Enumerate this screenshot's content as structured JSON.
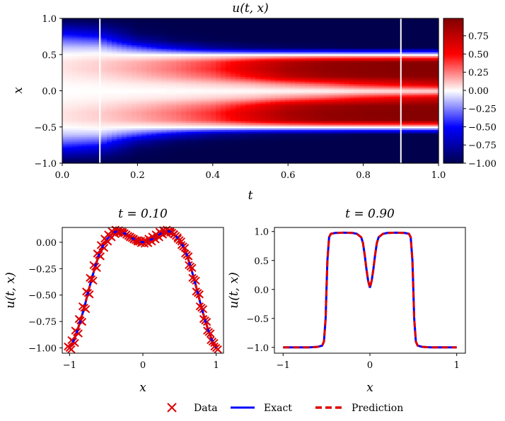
{
  "chart_data": [
    {
      "type": "heatmap",
      "title": "u(t, x)",
      "xlabel": "t",
      "ylabel": "x",
      "xlim": [
        0,
        1
      ],
      "ylim": [
        -1,
        1
      ],
      "xticks": [
        "0.0",
        "0.2",
        "0.4",
        "0.6",
        "0.8",
        "1.0"
      ],
      "yticks": [
        "−1.0",
        "−0.5",
        "0.0",
        "0.5",
        "1.0"
      ],
      "colormap": "seismic",
      "colorbar": {
        "range": [
          -1,
          0.99
        ],
        "ticks": [
          "0.75",
          "0.50",
          "0.25",
          "0.00",
          "−0.25",
          "−0.50",
          "−0.75",
          "−1.00"
        ]
      },
      "slice_lines_t": [
        0.1,
        0.9
      ],
      "slice_line_color": "#ffffff",
      "grid_t": [
        0,
        0.1,
        0.2,
        0.3,
        0.4,
        0.5,
        0.6,
        0.7,
        0.8,
        0.9,
        1.0
      ],
      "grid_x": [
        -1,
        -0.9,
        -0.8,
        -0.7,
        -0.6,
        -0.5,
        -0.4,
        -0.3,
        -0.2,
        -0.1,
        0,
        0.1,
        0.2,
        0.3,
        0.4,
        0.5,
        0.6,
        0.7,
        0.8,
        0.9,
        1
      ],
      "values": [
        [
          -1,
          -0.77,
          -0.52,
          -0.29,
          -0.11,
          0,
          0.049,
          0.053,
          0.032,
          0.0095,
          0,
          0.0095,
          0.032,
          0.053,
          0.049,
          0,
          -0.11,
          -0.29,
          -0.52,
          -0.77,
          -1
        ],
        [
          -1,
          -0.85,
          -0.62,
          -0.35,
          -0.12,
          0.02,
          0.09,
          0.1,
          0.06,
          0.02,
          0,
          0.02,
          0.06,
          0.1,
          0.09,
          0.02,
          -0.12,
          -0.35,
          -0.62,
          -0.85,
          -1
        ],
        [
          -1,
          -0.98,
          -0.93,
          -0.75,
          -0.35,
          0,
          0.16,
          0.18,
          0.12,
          0.04,
          0,
          0.04,
          0.12,
          0.18,
          0.16,
          0,
          -0.35,
          -0.75,
          -0.93,
          -0.98,
          -1
        ],
        [
          -1,
          -1,
          -0.99,
          -0.93,
          -0.6,
          0,
          0.25,
          0.28,
          0.2,
          0.06,
          0,
          0.06,
          0.2,
          0.28,
          0.25,
          0,
          -0.6,
          -0.93,
          -0.99,
          -1,
          -1
        ],
        [
          -1,
          -1,
          -1,
          -0.98,
          -0.8,
          0,
          0.38,
          0.42,
          0.3,
          0.1,
          0,
          0.1,
          0.3,
          0.42,
          0.38,
          0,
          -0.8,
          -0.98,
          -1,
          -1,
          -1
        ],
        [
          -1,
          -1,
          -1,
          -1,
          -0.9,
          0,
          0.6,
          0.65,
          0.5,
          0.15,
          0,
          0.15,
          0.5,
          0.65,
          0.6,
          0,
          -0.9,
          -1,
          -1,
          -1,
          -1
        ],
        [
          -1,
          -1,
          -1,
          -1,
          -0.95,
          0,
          0.8,
          0.85,
          0.75,
          0.25,
          0,
          0.25,
          0.75,
          0.85,
          0.8,
          0,
          -0.95,
          -1,
          -1,
          -1,
          -1
        ],
        [
          -1,
          -1,
          -1,
          -1,
          -0.97,
          0,
          0.92,
          0.93,
          0.88,
          0.35,
          0,
          0.35,
          0.88,
          0.93,
          0.92,
          0,
          -0.97,
          -1,
          -1,
          -1,
          -1
        ],
        [
          -1,
          -1,
          -1,
          -1,
          -1,
          0,
          0.95,
          0.96,
          0.93,
          0.5,
          0.02,
          0.5,
          0.93,
          0.96,
          0.95,
          0,
          -1,
          -1,
          -1,
          -1,
          -1
        ],
        [
          -1,
          -1,
          -1,
          -1,
          -1,
          0,
          0.97,
          0.98,
          0.95,
          0.6,
          0.03,
          0.6,
          0.95,
          0.98,
          0.97,
          0,
          -1,
          -1,
          -1,
          -1,
          -1
        ],
        [
          -1,
          -1,
          -1,
          -1,
          -1,
          0,
          0.97,
          0.98,
          0.96,
          0.7,
          0.04,
          0.7,
          0.96,
          0.98,
          0.97,
          0,
          -1,
          -1,
          -1,
          -1,
          -1
        ]
      ]
    },
    {
      "type": "line",
      "title": "t = 0.10",
      "xlabel": "x",
      "ylabel": "u(t, x)",
      "xlim": [
        -1.1,
        1.1
      ],
      "ylim": [
        -1.05,
        0.14
      ],
      "xticks": [
        "−1",
        "0",
        "1"
      ],
      "yticks": [
        "0.00",
        "−0.25",
        "−0.50",
        "−0.75",
        "−1.00"
      ],
      "x": [
        -1,
        -0.95,
        -0.9,
        -0.85,
        -0.8,
        -0.75,
        -0.7,
        -0.65,
        -0.6,
        -0.55,
        -0.5,
        -0.45,
        -0.4,
        -0.35,
        -0.3,
        -0.25,
        -0.2,
        -0.15,
        -0.1,
        -0.05,
        0,
        0.05,
        0.1,
        0.15,
        0.2,
        0.25,
        0.3,
        0.35,
        0.4,
        0.45,
        0.5,
        0.55,
        0.6,
        0.65,
        0.7,
        0.75,
        0.8,
        0.85,
        0.9,
        0.95,
        1
      ],
      "series": [
        {
          "name": "Data",
          "kind": "scatter-x",
          "values": [
            -1,
            -0.94,
            -0.85,
            -0.74,
            -0.62,
            -0.48,
            -0.35,
            -0.23,
            -0.12,
            -0.04,
            0.02,
            0.06,
            0.09,
            0.105,
            0.1,
            0.085,
            0.06,
            0.04,
            0.02,
            0.005,
            0,
            0.005,
            0.02,
            0.04,
            0.06,
            0.085,
            0.1,
            0.105,
            0.09,
            0.06,
            0.02,
            -0.04,
            -0.12,
            -0.23,
            -0.35,
            -0.48,
            -0.62,
            -0.74,
            -0.85,
            -0.94,
            -1
          ]
        },
        {
          "name": "Exact",
          "kind": "line",
          "values": [
            -1,
            -0.94,
            -0.85,
            -0.74,
            -0.62,
            -0.48,
            -0.35,
            -0.23,
            -0.12,
            -0.04,
            0.02,
            0.06,
            0.09,
            0.105,
            0.1,
            0.085,
            0.06,
            0.04,
            0.02,
            0.005,
            0,
            0.005,
            0.02,
            0.04,
            0.06,
            0.085,
            0.1,
            0.105,
            0.09,
            0.06,
            0.02,
            -0.04,
            -0.12,
            -0.23,
            -0.35,
            -0.48,
            -0.62,
            -0.74,
            -0.85,
            -0.94,
            -1
          ]
        },
        {
          "name": "Prediction",
          "kind": "dashed",
          "values": [
            -1,
            -0.94,
            -0.85,
            -0.74,
            -0.62,
            -0.48,
            -0.35,
            -0.23,
            -0.12,
            -0.04,
            0.02,
            0.06,
            0.09,
            0.105,
            0.1,
            0.085,
            0.06,
            0.04,
            0.02,
            0.005,
            0,
            0.005,
            0.02,
            0.04,
            0.06,
            0.085,
            0.1,
            0.105,
            0.09,
            0.06,
            0.02,
            -0.04,
            -0.12,
            -0.23,
            -0.35,
            -0.48,
            -0.62,
            -0.74,
            -0.85,
            -0.94,
            -1
          ]
        }
      ]
    },
    {
      "type": "line",
      "title": "t = 0.90",
      "xlabel": "x",
      "ylabel": "u(t, x)",
      "xlim": [
        -1.1,
        1.1
      ],
      "ylim": [
        -1.1,
        1.07
      ],
      "xticks": [
        "−1",
        "0",
        "1"
      ],
      "yticks": [
        "1.0",
        "0.5",
        "0.0",
        "−0.5",
        "−1.0"
      ],
      "x": [
        -1,
        -0.7,
        -0.6,
        -0.55,
        -0.53,
        -0.51,
        -0.5,
        -0.49,
        -0.47,
        -0.45,
        -0.4,
        -0.3,
        -0.2,
        -0.15,
        -0.1,
        -0.08,
        -0.06,
        -0.04,
        -0.02,
        0,
        0.02,
        0.04,
        0.06,
        0.08,
        0.1,
        0.15,
        0.2,
        0.3,
        0.4,
        0.45,
        0.47,
        0.49,
        0.5,
        0.51,
        0.53,
        0.55,
        0.6,
        0.7,
        1
      ],
      "series": [
        {
          "name": "Exact",
          "kind": "line",
          "values": [
            -1,
            -1,
            -0.99,
            -0.97,
            -0.9,
            -0.5,
            0,
            0.5,
            0.9,
            0.96,
            0.975,
            0.98,
            0.975,
            0.96,
            0.9,
            0.8,
            0.6,
            0.35,
            0.15,
            0.03,
            0.15,
            0.35,
            0.6,
            0.8,
            0.9,
            0.96,
            0.975,
            0.98,
            0.975,
            0.96,
            0.9,
            0.5,
            0,
            -0.5,
            -0.9,
            -0.97,
            -0.99,
            -1,
            -1
          ]
        },
        {
          "name": "Prediction",
          "kind": "dashed",
          "values": [
            -1,
            -1,
            -0.99,
            -0.97,
            -0.9,
            -0.5,
            0,
            0.5,
            0.9,
            0.96,
            0.975,
            0.98,
            0.975,
            0.96,
            0.9,
            0.8,
            0.6,
            0.35,
            0.15,
            0.03,
            0.15,
            0.35,
            0.6,
            0.8,
            0.9,
            0.96,
            0.975,
            0.98,
            0.975,
            0.96,
            0.9,
            0.5,
            0,
            -0.5,
            -0.9,
            -0.97,
            -0.99,
            -1,
            -1
          ]
        }
      ]
    }
  ],
  "legend": {
    "placement": "bottom-center",
    "items": [
      {
        "label": "Data",
        "marker": "x",
        "color": "#dd0000"
      },
      {
        "label": "Exact",
        "marker": "solid-line",
        "color": "#0000ff"
      },
      {
        "label": "Prediction",
        "marker": "dashed-line",
        "color": "#dd0000"
      }
    ]
  }
}
